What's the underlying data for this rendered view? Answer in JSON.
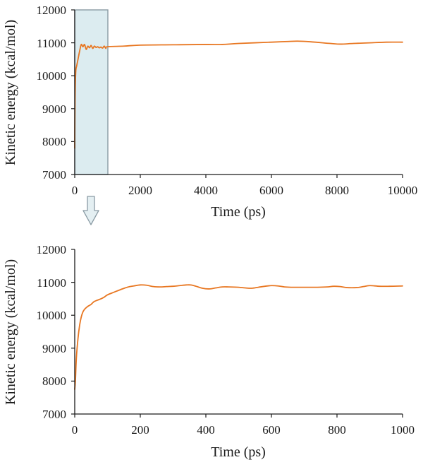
{
  "colors": {
    "series": "#e87722",
    "highlight_fill": "#dcecf0",
    "highlight_stroke": "#8a9ba4",
    "arrow_fill": "#e4eff2",
    "arrow_stroke": "#8a9ba4"
  },
  "arrow_icon": "down-arrow-icon",
  "chart_data": [
    {
      "type": "line",
      "xlabel": "Time (ps)",
      "ylabel": "Kinetic energy (kcal/mol)",
      "xlim": [
        0,
        10000
      ],
      "ylim": [
        7000,
        12000
      ],
      "xticks": [
        "0",
        "2000",
        "4000",
        "6000",
        "8000",
        "10000"
      ],
      "yticks": [
        "7000",
        "8000",
        "9000",
        "10000",
        "11000",
        "12000"
      ],
      "highlight_region": {
        "x": [
          0,
          1000
        ],
        "y": [
          7000,
          12000
        ]
      },
      "series": [
        {
          "x": [
            0,
            10,
            30,
            60,
            100,
            150,
            200,
            250,
            300,
            350,
            400,
            450,
            500,
            550,
            600,
            650,
            700,
            750,
            800,
            850,
            900,
            950,
            1000,
            1500,
            2000,
            3000,
            4000,
            4500,
            5000,
            6000,
            6500,
            6800,
            7200,
            7800,
            8100,
            8500,
            9000,
            9500,
            10000
          ],
          "y": [
            7800,
            9300,
            10100,
            10300,
            10500,
            10750,
            10950,
            10880,
            10950,
            10800,
            10900,
            10850,
            10920,
            10830,
            10900,
            10860,
            10880,
            10850,
            10870,
            10840,
            10900,
            10830,
            10880,
            10900,
            10930,
            10940,
            10950,
            10950,
            10980,
            11020,
            11040,
            11050,
            11030,
            10980,
            10960,
            10980,
            11000,
            11020,
            11020
          ]
        }
      ]
    },
    {
      "type": "line",
      "xlabel": "Time (ps)",
      "ylabel": "Kinetic energy (kcal/mol)",
      "xlim": [
        0,
        1000
      ],
      "ylim": [
        7000,
        12000
      ],
      "xticks": [
        "0",
        "200",
        "400",
        "600",
        "800",
        "1000"
      ],
      "yticks": [
        "7000",
        "8000",
        "9000",
        "10000",
        "11000",
        "12000"
      ],
      "series": [
        {
          "x": [
            0,
            2,
            5,
            10,
            15,
            20,
            25,
            30,
            35,
            40,
            45,
            50,
            55,
            60,
            70,
            80,
            90,
            100,
            120,
            140,
            160,
            180,
            200,
            220,
            240,
            260,
            280,
            300,
            320,
            340,
            355,
            370,
            390,
            410,
            430,
            450,
            470,
            500,
            520,
            540,
            560,
            580,
            600,
            620,
            640,
            660,
            700,
            740,
            770,
            790,
            810,
            830,
            860,
            880,
            900,
            930,
            960,
            1000
          ],
          "y": [
            7750,
            8000,
            8700,
            9300,
            9700,
            9950,
            10100,
            10180,
            10230,
            10270,
            10300,
            10330,
            10380,
            10420,
            10460,
            10500,
            10550,
            10620,
            10700,
            10780,
            10850,
            10890,
            10920,
            10910,
            10870,
            10860,
            10870,
            10880,
            10900,
            10920,
            10920,
            10880,
            10820,
            10800,
            10830,
            10860,
            10860,
            10850,
            10830,
            10820,
            10850,
            10880,
            10900,
            10890,
            10860,
            10850,
            10850,
            10850,
            10860,
            10880,
            10870,
            10840,
            10840,
            10870,
            10900,
            10880,
            10880,
            10890
          ]
        }
      ]
    }
  ]
}
